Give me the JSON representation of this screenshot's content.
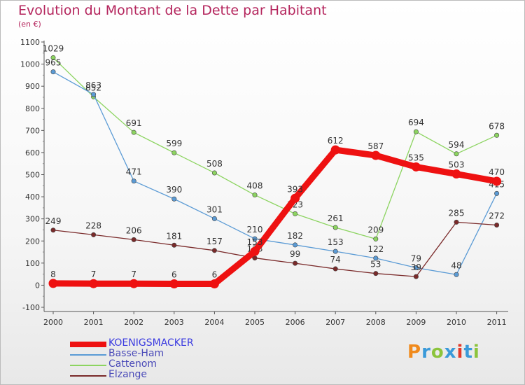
{
  "title": "Evolution du Montant de la Dette par Habitant",
  "subtitle": "(en €)",
  "brand": {
    "text": "Proxiti",
    "colors": [
      "#f08a1c",
      "#3a9ad9",
      "#8cc43c",
      "#3a9ad9",
      "#e23a2a",
      "#3a9ad9",
      "#8cc43c"
    ]
  },
  "chart_data": {
    "type": "line",
    "title": "Evolution du Montant de la Dette par Habitant",
    "ylabel": "(en €)",
    "xlabel": "",
    "x": [
      "2000",
      "2001",
      "2002",
      "2003",
      "2004",
      "2005",
      "2006",
      "2007",
      "2008",
      "2009",
      "2010",
      "2011"
    ],
    "ylim": [
      -100,
      1100
    ],
    "yticks": [
      -100,
      0,
      100,
      200,
      300,
      400,
      500,
      600,
      700,
      800,
      900,
      1000,
      1100
    ],
    "grid": false,
    "legend": "bottom-left",
    "series": [
      {
        "name": "Cattenom",
        "color": "#8cd460",
        "emphasis": false,
        "values": [
          1029,
          852,
          691,
          599,
          508,
          408,
          323,
          261,
          209,
          694,
          594,
          678
        ]
      },
      {
        "name": "Basse-Ham",
        "color": "#5b9bd5",
        "emphasis": false,
        "values": [
          965,
          863,
          471,
          390,
          301,
          210,
          182,
          153,
          122,
          79,
          48,
          415
        ]
      },
      {
        "name": "Elzange",
        "color": "#7a2a2a",
        "emphasis": false,
        "values": [
          249,
          228,
          206,
          181,
          157,
          123,
          99,
          74,
          53,
          39,
          285,
          272
        ]
      },
      {
        "name": "KOENIGSMACKER",
        "color": "#ee1111",
        "emphasis": true,
        "values": [
          8,
          7,
          7,
          6,
          6,
          153,
          393,
          612,
          587,
          535,
          503,
          470
        ]
      }
    ]
  },
  "legend_order": [
    "KOENIGSMACKER",
    "Basse-Ham",
    "Cattenom",
    "Elzange"
  ]
}
